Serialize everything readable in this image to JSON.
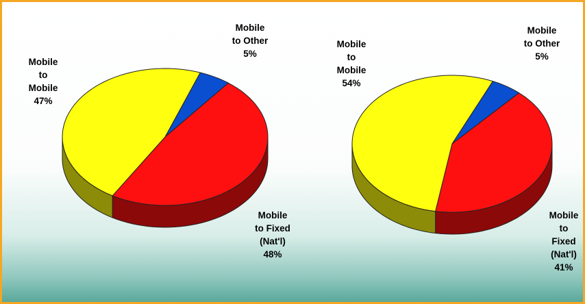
{
  "chart_data": [
    {
      "type": "pie3d",
      "categories": [
        "Mobile\nto Other",
        "Mobile\nto Fixed\n(Nat'l)",
        "Mobile\nto\nMobile"
      ],
      "values": [
        5,
        48,
        47
      ],
      "value_labels": [
        "5%",
        "48%",
        "47%"
      ],
      "colors": [
        "#0a4fd0",
        "#ff1010",
        "#ffff10"
      ]
    },
    {
      "type": "pie3d",
      "categories": [
        "Mobile\nto Other",
        "Mobile\nto Fixed\n(Nat'l)",
        "Mobile\nto\nMobile"
      ],
      "values": [
        5,
        41,
        54
      ],
      "value_labels": [
        "5%",
        "41%",
        "54%"
      ],
      "colors": [
        "#0a4fd0",
        "#ff1010",
        "#ffff10"
      ]
    }
  ]
}
